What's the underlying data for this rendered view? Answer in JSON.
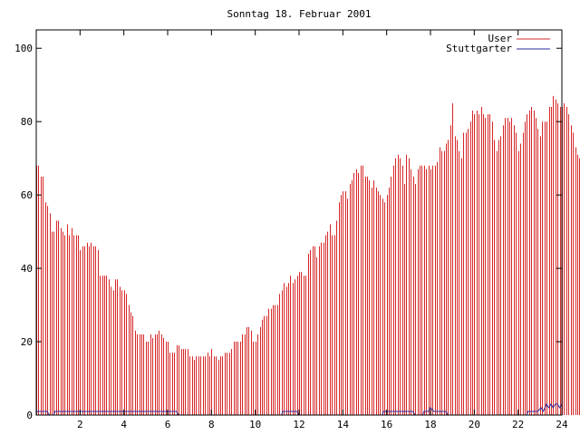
{
  "chart_data": {
    "type": "bar",
    "title": "Sonntag 18. Februar 2001",
    "xlabel": "",
    "ylabel": "",
    "xlim": [
      0,
      24
    ],
    "ylim": [
      0,
      105
    ],
    "x_ticks": [
      "2",
      "4",
      "6",
      "8",
      "10",
      "12",
      "14",
      "16",
      "18",
      "20",
      "22",
      "24"
    ],
    "y_ticks": [
      "0",
      "20",
      "40",
      "60",
      "80",
      "100"
    ],
    "grid": false,
    "legend_position": "top-right",
    "series": [
      {
        "name": "User",
        "style": "impulses",
        "color": "#d62728",
        "x_start": 0.0,
        "x_step": 0.1,
        "values": [
          68,
          68,
          65,
          65,
          58,
          57,
          55,
          50,
          50,
          53,
          53,
          51,
          50,
          49,
          52,
          49,
          51,
          49,
          49,
          49,
          45,
          46,
          46,
          47,
          46,
          47,
          46,
          46,
          45,
          38,
          38,
          38,
          38,
          37,
          35,
          34,
          37,
          37,
          35,
          34,
          34,
          33,
          30,
          28,
          27,
          23,
          22,
          22,
          22,
          22,
          20,
          20,
          22,
          21,
          22,
          22,
          23,
          22,
          21,
          20,
          20,
          17,
          17,
          17,
          19,
          19,
          18,
          18,
          18,
          18,
          16,
          16,
          15,
          16,
          16,
          16,
          16,
          16,
          17,
          16,
          18,
          16,
          16,
          15,
          16,
          16,
          17,
          17,
          17,
          18,
          20,
          20,
          20,
          20,
          22,
          22,
          24,
          24,
          23,
          20,
          20,
          22,
          24,
          26,
          27,
          27,
          29,
          29,
          30,
          30,
          30,
          33,
          34,
          36,
          35,
          36,
          38,
          36,
          37,
          38,
          39,
          39,
          38,
          38,
          44,
          45,
          46,
          46,
          43,
          46,
          47,
          47,
          49,
          50,
          52,
          49,
          49,
          53,
          58,
          60,
          61,
          61,
          59,
          63,
          64,
          66,
          67,
          66,
          68,
          68,
          65,
          65,
          64,
          62,
          64,
          62,
          61,
          60,
          59,
          58,
          60,
          62,
          65,
          68,
          70,
          71,
          70,
          68,
          63,
          71,
          70,
          67,
          65,
          63,
          67,
          68,
          68,
          68,
          67,
          68,
          67,
          68,
          68,
          69,
          73,
          72,
          72,
          74,
          75,
          79,
          85,
          76,
          75,
          72,
          70,
          77,
          77,
          78,
          80,
          83,
          82,
          83,
          82,
          84,
          82,
          81,
          82,
          82,
          80,
          75,
          72,
          75,
          76,
          79,
          81,
          81,
          80,
          81,
          79,
          77,
          72,
          74,
          77,
          80,
          82,
          83,
          84,
          83,
          81,
          78,
          76,
          80,
          80,
          80,
          84,
          84,
          87,
          86,
          85,
          84,
          84,
          85,
          84,
          82,
          79,
          77,
          73,
          71,
          70,
          74
        ]
      },
      {
        "name": "Stuttgarter",
        "style": "lines",
        "color": "#2c2ca0",
        "x": [
          0,
          0.03,
          0.5,
          0.6,
          0.8,
          0.85,
          6.4,
          6.5,
          11.2,
          11.25,
          11.9,
          12.0,
          15.8,
          15.85,
          17.2,
          17.3,
          17.65,
          17.7,
          17.9,
          18.0,
          18.15,
          18.4,
          18.7,
          18.8,
          22.4,
          22.45,
          22.8,
          22.9,
          23.05,
          23.15,
          23.3,
          23.4,
          23.5,
          23.6,
          23.7,
          23.8,
          23.9,
          24.0
        ],
        "values": [
          0,
          1,
          1,
          0,
          0,
          1,
          1,
          0,
          0,
          1,
          1,
          0,
          0,
          1,
          1,
          0,
          0,
          1,
          1,
          2,
          1,
          1,
          1,
          0,
          0,
          1,
          1,
          1,
          2,
          1,
          3,
          2,
          3,
          2,
          3,
          3,
          2,
          3
        ]
      }
    ]
  }
}
